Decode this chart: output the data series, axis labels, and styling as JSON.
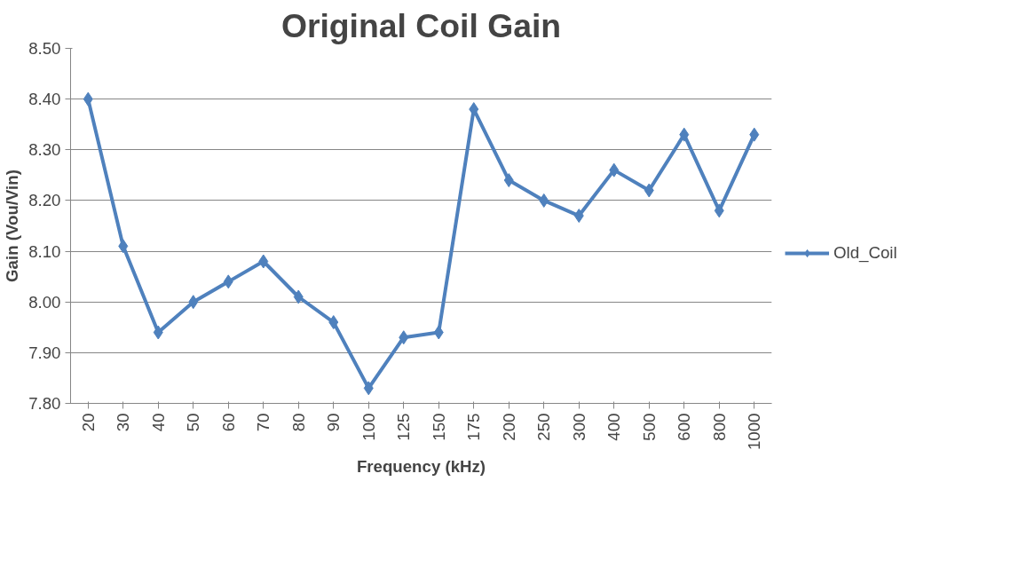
{
  "chart_data": {
    "type": "line",
    "title": "Original Coil Gain",
    "xlabel": "Frequency (kHz)",
    "ylabel": "Gain (Vou/Vin)",
    "categories": [
      "20",
      "30",
      "40",
      "50",
      "60",
      "70",
      "80",
      "90",
      "100",
      "125",
      "150",
      "175",
      "200",
      "250",
      "300",
      "400",
      "500",
      "600",
      "800",
      "1000"
    ],
    "series": [
      {
        "name": "Old_Coil",
        "color": "#4f81bd",
        "values": [
          8.4,
          8.11,
          7.94,
          8.0,
          8.04,
          8.08,
          8.01,
          7.96,
          7.83,
          7.93,
          7.94,
          8.38,
          8.24,
          8.2,
          8.17,
          8.26,
          8.22,
          8.33,
          8.18,
          8.33
        ]
      }
    ],
    "ylim": [
      7.8,
      8.5
    ],
    "yticks": [
      {
        "value": 7.8,
        "label": "7.80"
      },
      {
        "value": 7.9,
        "label": "7.90"
      },
      {
        "value": 8.0,
        "label": "8.00"
      },
      {
        "value": 8.1,
        "label": "8.10"
      },
      {
        "value": 8.2,
        "label": "8.20"
      },
      {
        "value": 8.3,
        "label": "8.30"
      },
      {
        "value": 8.4,
        "label": "8.40"
      },
      {
        "value": 8.5,
        "label": "8.50"
      }
    ],
    "grid": "y",
    "legend": "right",
    "marker": "diamond",
    "line_style": "solid"
  }
}
